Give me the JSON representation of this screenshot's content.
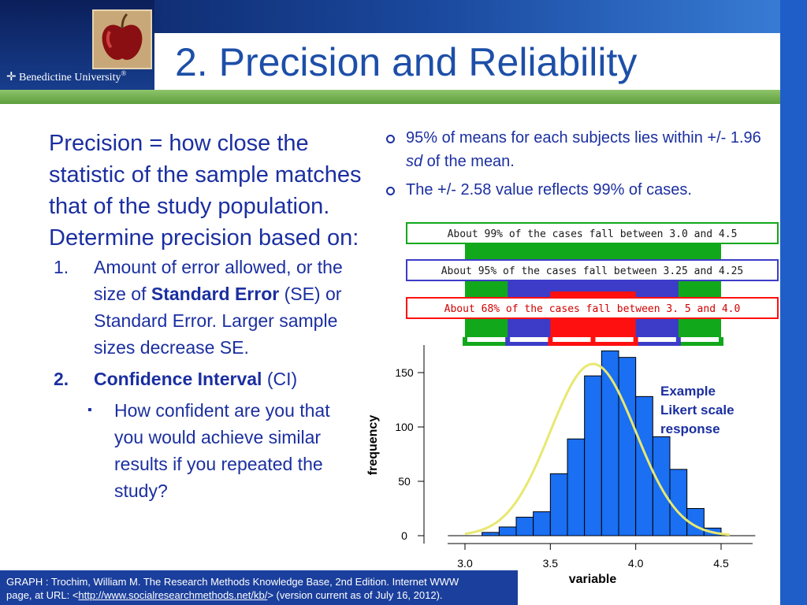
{
  "header": {
    "title": "2. Precision and Reliability",
    "logo_text": "Benedictine University",
    "logo_mark": "®"
  },
  "left": {
    "lead": "Precision = how close the statistic of the sample matches that of the study population. Determine precision based on:",
    "items": [
      {
        "num": "1.",
        "pre": "Amount of error allowed, or the size of ",
        "bold": "Standard Error",
        "post": " (SE) or Standard Error. Larger sample sizes decrease SE."
      },
      {
        "num": "2.",
        "bold": "Confidence Interval",
        "post": " (CI)"
      }
    ],
    "sub_item": "How confident are you that you would achieve similar results if you repeated the study?"
  },
  "right_bullets": {
    "b1_pre": "95% of means for each subjects lies within +/- 1.96 ",
    "b1_italic": "sd",
    "b1_post": " of the mean.",
    "b2": "The +/- 2.58 value reflects 99% of cases."
  },
  "callout": {
    "text": "Example Likert scale response"
  },
  "citation": {
    "line1": "GRAPH : Trochim, William M. The Research Methods Knowledge Base, 2nd Edition. Internet WWW",
    "line2_pre": "page, at URL: <",
    "url": "http://www.socialresearchmethods.net/kb/",
    "line2_post": "> (version current as of  July 16, 2012)."
  },
  "colors": {
    "title": "#1d4fa8",
    "text": "#1b2fa0",
    "bar_fill": "#1a6ff2",
    "curve": "#e8e870",
    "band_99": "#12a81c",
    "band_95": "#3c3cc8",
    "band_68": "#ff1010"
  },
  "chart_data": {
    "type": "bar",
    "xlabel": "variable",
    "ylabel": "frequency",
    "xlim": [
      2.85,
      4.65
    ],
    "ylim": [
      0,
      165
    ],
    "x_ticks": [
      3.0,
      3.5,
      4.0,
      4.5
    ],
    "x_tick_labels": [
      "3.0",
      "3.5",
      "4.0",
      "4.5"
    ],
    "y_ticks": [
      0,
      50,
      100,
      150
    ],
    "y_tick_labels": [
      "0",
      "50",
      "100",
      "150"
    ],
    "bin_width": 0.1,
    "bins": [
      {
        "x0": 2.9,
        "value": 0
      },
      {
        "x0": 3.0,
        "value": 0
      },
      {
        "x0": 3.1,
        "value": 3
      },
      {
        "x0": 3.2,
        "value": 8
      },
      {
        "x0": 3.3,
        "value": 17
      },
      {
        "x0": 3.4,
        "value": 22
      },
      {
        "x0": 3.5,
        "value": 57
      },
      {
        "x0": 3.6,
        "value": 89
      },
      {
        "x0": 3.7,
        "value": 147
      },
      {
        "x0": 3.8,
        "value": 170
      },
      {
        "x0": 3.9,
        "value": 164
      },
      {
        "x0": 4.0,
        "value": 128
      },
      {
        "x0": 4.1,
        "value": 91
      },
      {
        "x0": 4.2,
        "value": 61
      },
      {
        "x0": 4.3,
        "value": 25
      },
      {
        "x0": 4.4,
        "value": 7
      },
      {
        "x0": 4.5,
        "value": 0
      },
      {
        "x0": 4.6,
        "value": 0
      }
    ],
    "curve": {
      "mean": 3.75,
      "sd": 0.25,
      "peak": 158
    },
    "bands": [
      {
        "label": "About 99% of the cases fall between 3.0 and 4.5",
        "from": 3.0,
        "to": 4.5,
        "color": "#12a81c"
      },
      {
        "label": "About 95% of the cases fall between 3.25 and 4.25",
        "from": 3.25,
        "to": 4.25,
        "color": "#3c3cc8"
      },
      {
        "label": "About 68% of the cases fall between 3. 5 and 4.0",
        "from": 3.5,
        "to": 4.0,
        "color": "#ff1010"
      }
    ],
    "band_tick_values": [
      3.0,
      3.25,
      3.5,
      3.75,
      4.0,
      4.25,
      4.5
    ]
  }
}
